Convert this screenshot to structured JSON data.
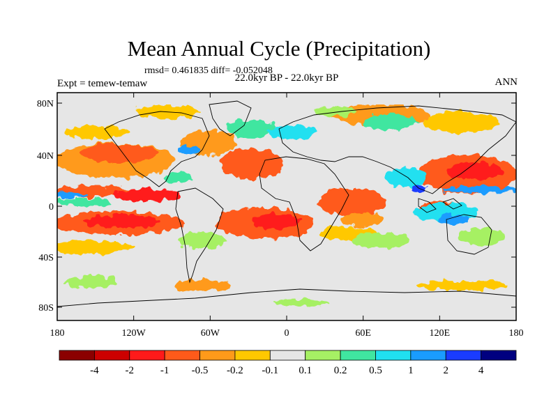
{
  "header": {
    "title": "Mean Annual Cycle (Precipitation)",
    "stats": "rmsd= 0.461835 diff= -0.052048",
    "period": "22.0kyr BP - 22.0kyr BP",
    "experiment": "Expt = temew-temaw",
    "season": "ANN"
  },
  "axes": {
    "y_ticks": [
      "80N",
      "40N",
      "0",
      "40S",
      "80S"
    ],
    "x_ticks": [
      "180",
      "120W",
      "60W",
      "0",
      "60E",
      "120E",
      "180"
    ]
  },
  "colorbar": {
    "labels": [
      "-4",
      "-2",
      "-1",
      "-0.5",
      "-0.2",
      "-0.1",
      "0.1",
      "0.2",
      "0.5",
      "1",
      "2",
      "4"
    ],
    "colors": [
      "#8b0000",
      "#cc0000",
      "#ff1a1a",
      "#ff5a1a",
      "#ff9a1a",
      "#ffc800",
      "#e6e6e6",
      "#a6f064",
      "#40e6a0",
      "#20e0f0",
      "#1a9cff",
      "#1a3cff",
      "#000080"
    ]
  }
}
